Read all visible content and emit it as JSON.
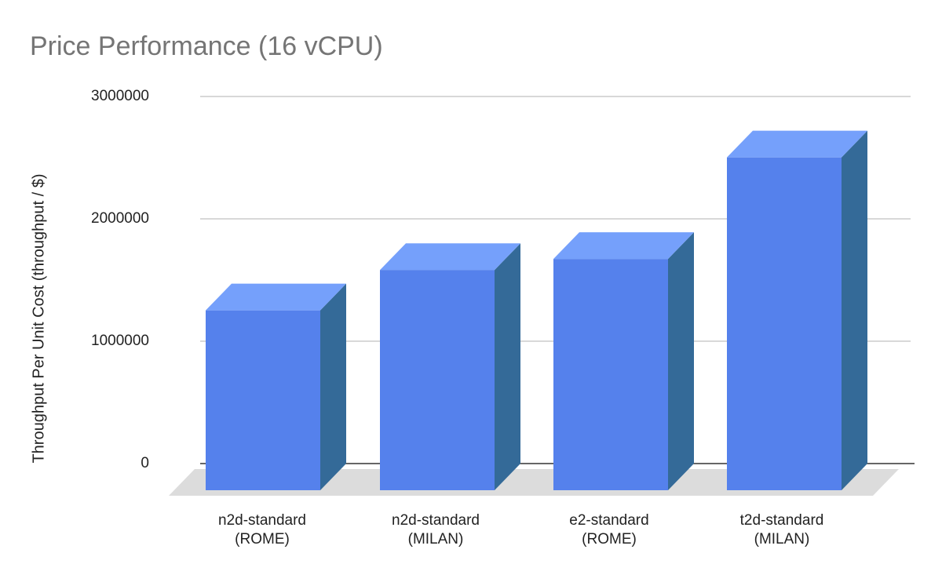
{
  "chart_data": {
    "type": "bar",
    "title": "Price Performance (16 vCPU)",
    "xlabel": "",
    "ylabel": "Throughput Per Unit Cost (throughput / $)",
    "ylim": [
      0,
      3000000
    ],
    "yticks": [
      "0",
      "1000000",
      "2000000",
      "3000000"
    ],
    "categories": [
      "n2d-standard (ROME)",
      "n2d-standard (MILAN)",
      "e2-standard (ROME)",
      "t2d-standard (MILAN)"
    ],
    "category_lines": [
      [
        "n2d-standard",
        "(ROME)"
      ],
      [
        "n2d-standard",
        "(MILAN)"
      ],
      [
        "e2-standard",
        "(ROME)"
      ],
      [
        "t2d-standard",
        "(MILAN)"
      ]
    ],
    "values": [
      1470000,
      1800000,
      1890000,
      2720000
    ],
    "grid": true,
    "style": "3d",
    "colors": {
      "front": "#5581ec",
      "top": "#75a0fb",
      "side": "#346a98"
    }
  }
}
